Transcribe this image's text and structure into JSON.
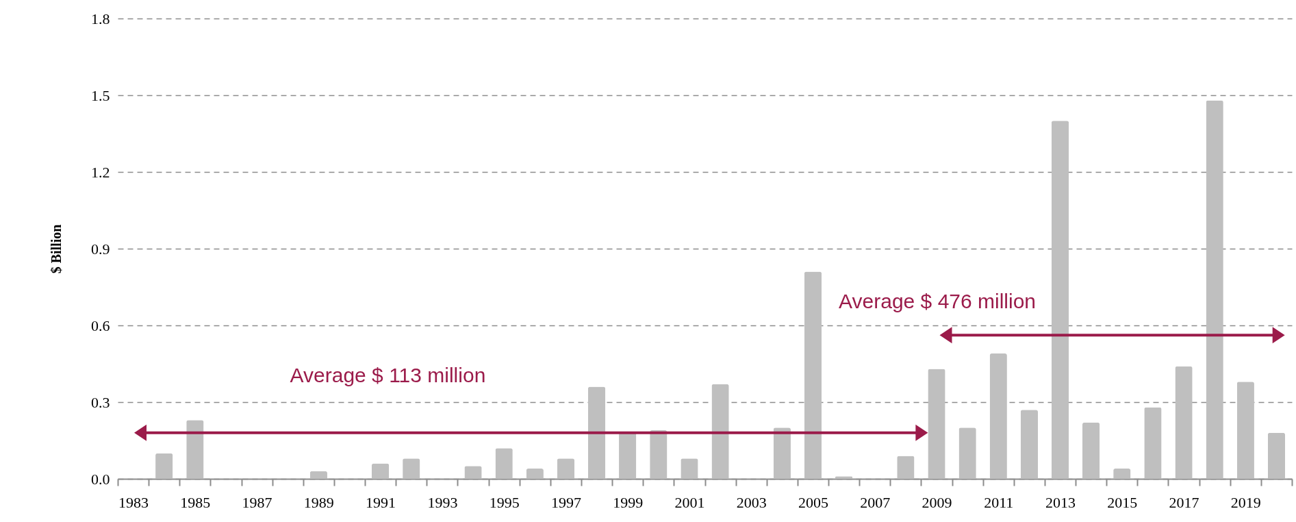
{
  "chart_data": {
    "type": "bar",
    "ylabel": "$ Billion",
    "categories": [
      "1983",
      null,
      "1985",
      null,
      "1987",
      null,
      "1989",
      null,
      "1991",
      null,
      "1993",
      null,
      "1995",
      null,
      "1997",
      null,
      "1999",
      null,
      "2001",
      null,
      "2003",
      null,
      "2005",
      null,
      "2007",
      null,
      "2009",
      null,
      "2011",
      null,
      "2013",
      null,
      "2015",
      null,
      "2017",
      null,
      "2019",
      null
    ],
    "values": [
      0,
      0.1,
      0.23,
      0,
      0,
      0,
      0.03,
      0,
      0.06,
      0.08,
      0,
      0.05,
      0.12,
      0.04,
      0.08,
      0.36,
      0.18,
      0.19,
      0.08,
      0.37,
      0,
      0.2,
      0.81,
      0.01,
      0,
      0.09,
      0.43,
      0.2,
      0.49,
      0.27,
      1.4,
      0.22,
      0.04,
      0.28,
      0.44,
      1.48,
      0.38,
      0.18
    ],
    "color": "#bfbfbf",
    "ylim": [
      0,
      1.8
    ],
    "yticks": [
      {
        "value": 0,
        "label": "0.0"
      },
      0.3,
      0.6,
      0.9,
      1.2,
      1.5,
      1.8
    ],
    "grid": "y",
    "annotations": [
      "Average $ 113 million",
      "Average $ 476 million"
    ]
  }
}
